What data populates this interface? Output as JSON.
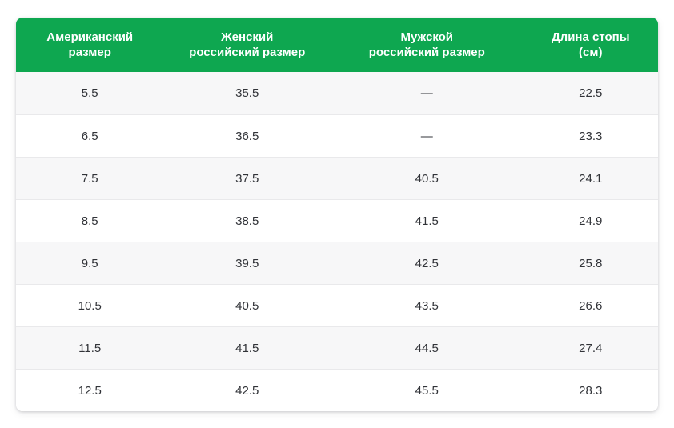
{
  "chart_data": {
    "type": "table",
    "title": "",
    "columns": [
      "Американский\nразмер",
      "Женский\nроссийский размер",
      "Мужской\nроссийский размер",
      "Длина стопы\n(см)"
    ],
    "rows": [
      [
        "5.5",
        "35.5",
        "—",
        "22.5"
      ],
      [
        "6.5",
        "36.5",
        "—",
        "23.3"
      ],
      [
        "7.5",
        "37.5",
        "40.5",
        "24.1"
      ],
      [
        "8.5",
        "38.5",
        "41.5",
        "24.9"
      ],
      [
        "9.5",
        "39.5",
        "42.5",
        "25.8"
      ],
      [
        "10.5",
        "40.5",
        "43.5",
        "26.6"
      ],
      [
        "11.5",
        "41.5",
        "44.5",
        "27.4"
      ],
      [
        "12.5",
        "42.5",
        "45.5",
        "28.3"
      ]
    ]
  },
  "colors": {
    "header_bg": "#0ea750",
    "header_text": "#ffffff",
    "row_bg": "#ffffff",
    "row_alt_bg": "#f7f7f8",
    "divider": "#e9e9eb",
    "cell_text": "#313338"
  }
}
